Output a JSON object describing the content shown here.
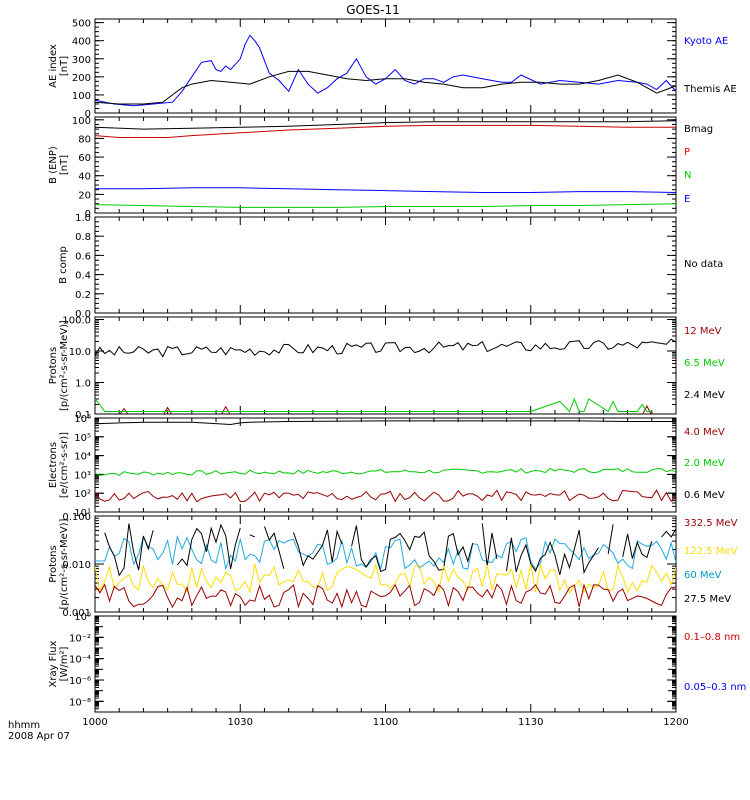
{
  "title": "GOES-11",
  "time_label": "hhmm",
  "date_label": "2008 Apr 07",
  "x_ticks": [
    {
      "t": 0,
      "label": "1000"
    },
    {
      "t": 30,
      "label": "1030"
    },
    {
      "t": 60,
      "label": "1100"
    },
    {
      "t": 90,
      "label": "1130"
    },
    {
      "t": 120,
      "label": "1200"
    }
  ],
  "chart_data": [
    {
      "type": "line",
      "ylabel": [
        "AE index",
        "[nT]"
      ],
      "scale": "linear",
      "ylim": [
        0,
        520
      ],
      "yticks": [
        0,
        100,
        200,
        300,
        400,
        500
      ],
      "yticklabels": [
        "0",
        "100",
        "200",
        "300",
        "400",
        "500"
      ],
      "legend": [
        {
          "label": "Kyoto AE",
          "color": "#0000ff"
        },
        {
          "label": "Themis AE",
          "color": "#000000"
        }
      ],
      "series": [
        {
          "name": "Kyoto AE",
          "color": "#0000ff",
          "gen": "explicit",
          "x": [
            0,
            4,
            8,
            12,
            16,
            18,
            20,
            22,
            24,
            25,
            26,
            27,
            28,
            30,
            31,
            32,
            33,
            34,
            36,
            38,
            40,
            42,
            44,
            46,
            48,
            50,
            52,
            54,
            56,
            58,
            60,
            62,
            64,
            66,
            68,
            70,
            72,
            74,
            76,
            80,
            84,
            86,
            88,
            92,
            96,
            100,
            104,
            108,
            112,
            114,
            116,
            118,
            120
          ],
          "y": [
            70,
            50,
            40,
            50,
            60,
            120,
            200,
            280,
            290,
            240,
            230,
            260,
            240,
            300,
            380,
            430,
            400,
            360,
            220,
            180,
            120,
            240,
            160,
            110,
            140,
            190,
            220,
            300,
            200,
            160,
            190,
            240,
            180,
            160,
            190,
            190,
            170,
            200,
            210,
            190,
            170,
            170,
            210,
            160,
            180,
            170,
            160,
            180,
            170,
            160,
            130,
            180,
            120
          ]
        },
        {
          "name": "Themis AE",
          "color": "#000000",
          "gen": "explicit",
          "x": [
            0,
            5,
            10,
            14,
            16,
            18,
            20,
            24,
            28,
            32,
            36,
            40,
            44,
            48,
            52,
            56,
            60,
            64,
            68,
            72,
            76,
            80,
            84,
            88,
            92,
            96,
            100,
            104,
            108,
            112,
            114,
            116,
            118,
            120
          ],
          "y": [
            60,
            50,
            50,
            60,
            100,
            140,
            160,
            180,
            170,
            160,
            200,
            230,
            230,
            210,
            190,
            180,
            190,
            190,
            170,
            160,
            140,
            140,
            160,
            170,
            170,
            160,
            160,
            180,
            210,
            170,
            140,
            110,
            130,
            150
          ]
        }
      ]
    },
    {
      "type": "line",
      "ylabel": [
        "B (ENP)",
        "[nT]"
      ],
      "scale": "linear",
      "ylim": [
        0,
        103
      ],
      "yticks": [
        0,
        20,
        40,
        60,
        80,
        100
      ],
      "yticklabels": [
        "0",
        "20",
        "40",
        "60",
        "80",
        "100"
      ],
      "legend": [
        {
          "label": "Bmag",
          "color": "#000000"
        },
        {
          "label": "P",
          "color": "#ff0000"
        },
        {
          "label": "N",
          "color": "#00cc00"
        },
        {
          "label": "E",
          "color": "#0000ff"
        }
      ],
      "series": [
        {
          "name": "Bmag",
          "color": "#000000",
          "gen": "explicit",
          "x": [
            0,
            10,
            20,
            30,
            40,
            50,
            60,
            70,
            80,
            90,
            100,
            110,
            120
          ],
          "y": [
            92,
            90,
            91,
            92,
            93,
            95,
            97,
            98,
            98,
            98,
            98,
            98,
            99
          ]
        },
        {
          "name": "P",
          "color": "#cc0000",
          "gen": "explicit",
          "x": [
            0,
            5,
            10,
            15,
            20,
            30,
            40,
            50,
            60,
            70,
            80,
            90,
            100,
            110,
            120
          ],
          "y": [
            83,
            81,
            81,
            81,
            83,
            86,
            89,
            91,
            93,
            94,
            94,
            94,
            93,
            92,
            92
          ]
        },
        {
          "name": "N",
          "color": "#00cc00",
          "gen": "explicit",
          "x": [
            0,
            10,
            20,
            30,
            40,
            50,
            60,
            70,
            80,
            90,
            100,
            110,
            120
          ],
          "y": [
            9,
            8,
            7,
            6,
            6,
            6,
            7,
            7,
            7,
            8,
            8,
            9,
            10
          ]
        },
        {
          "name": "E",
          "color": "#0000ff",
          "gen": "explicit",
          "x": [
            0,
            10,
            20,
            30,
            40,
            50,
            60,
            70,
            80,
            90,
            100,
            110,
            120
          ],
          "y": [
            26,
            26,
            27,
            27,
            26,
            25,
            24,
            23,
            22,
            22,
            23,
            23,
            22
          ]
        }
      ]
    },
    {
      "type": "line",
      "ylabel": [
        "B comp"
      ],
      "scale": "linear",
      "ylim": [
        0,
        1
      ],
      "yticks": [
        0,
        0.2,
        0.4,
        0.6,
        0.8,
        1.0
      ],
      "yticklabels": [
        "0.0",
        "0.2",
        "0.4",
        "0.6",
        "0.8",
        "1.0"
      ],
      "legend": [
        {
          "label": "No data",
          "color": "#000000"
        }
      ],
      "series": []
    },
    {
      "type": "line",
      "ylabel": [
        "Protons",
        "[p/(cm²-s-sr-MeV)]"
      ],
      "scale": "log",
      "ylim": [
        0.1,
        120
      ],
      "yticks": [
        0.1,
        1,
        10,
        100
      ],
      "yticklabels": [
        "0.1",
        "1.0",
        "10.0",
        "100.0"
      ],
      "legend": [
        {
          "label": "12 MeV",
          "color": "#990000"
        },
        {
          "label": "6.5 MeV",
          "color": "#00cc00"
        },
        {
          "label": "2.4 MeV",
          "color": "#000000"
        }
      ],
      "series": [
        {
          "name": "2.4 MeV",
          "color": "#000000",
          "gen": "noise",
          "base_start": 9,
          "base_end": 16,
          "amp": 0.09,
          "seed": 3
        },
        {
          "name": "12 MeV",
          "color": "#990000",
          "gen": "explicit",
          "x": [
            5,
            6,
            7,
            14,
            15,
            16,
            26,
            27,
            28,
            113,
            114,
            115
          ],
          "y": [
            0.09,
            0.15,
            0.09,
            0.09,
            0.16,
            0.09,
            0.09,
            0.17,
            0.09,
            0.09,
            0.18,
            0.09
          ]
        },
        {
          "name": "6.5 MeV",
          "color": "#00cc00",
          "gen": "explicit",
          "x": [
            0,
            1,
            2,
            8,
            12,
            16,
            24,
            34,
            44,
            52,
            56,
            74,
            82,
            90,
            96,
            98,
            99,
            100,
            101,
            102,
            106,
            107,
            108,
            110,
            112,
            113,
            114,
            115
          ],
          "y": [
            0.3,
            0.2,
            0.12,
            0.12,
            0.12,
            0.12,
            0.12,
            0.12,
            0.12,
            0.12,
            0.12,
            0.12,
            0.12,
            0.12,
            0.25,
            0.12,
            0.3,
            0.12,
            0.12,
            0.3,
            0.12,
            0.25,
            0.12,
            0.12,
            0.12,
            0.2,
            0.12,
            0.12
          ]
        }
      ]
    },
    {
      "type": "line",
      "ylabel": [
        "Electrons",
        "[e/(cm²-s-sr)]"
      ],
      "scale": "log",
      "ylim": [
        10,
        1000000.0
      ],
      "yticks": [
        10,
        100,
        1000,
        10000,
        100000,
        1000000
      ],
      "yticklabels": [
        "10¹",
        "10²",
        "10³",
        "10⁴",
        "10⁵",
        "10⁶"
      ],
      "legend": [
        {
          "label": "4.0 MeV",
          "color": "#990000"
        },
        {
          "label": "2.0 MeV",
          "color": "#00cc00"
        },
        {
          "label": "0.6 MeV",
          "color": "#000000"
        }
      ],
      "series": [
        {
          "name": "0.6 MeV",
          "color": "#000000",
          "gen": "explicit",
          "x": [
            0,
            10,
            20,
            28,
            30,
            32,
            40,
            60,
            80,
            100,
            110,
            120
          ],
          "y": [
            500000,
            600000,
            600000,
            450000,
            550000,
            600000,
            650000,
            700000,
            700000,
            700000,
            650000,
            650000
          ]
        },
        {
          "name": "2.0 MeV",
          "color": "#00cc00",
          "gen": "noise",
          "base_start": 1100,
          "base_end": 1700,
          "amp": 0.06,
          "seed": 7
        },
        {
          "name": "4.0 MeV",
          "color": "#990000",
          "gen": "noise",
          "base_start": 65,
          "base_end": 75,
          "amp": 0.15,
          "seed": 11
        }
      ]
    },
    {
      "type": "line",
      "ylabel": [
        "Protons",
        "[p/(cm²-s-sr-MeV)]"
      ],
      "scale": "log",
      "ylim": [
        0.001,
        0.1
      ],
      "yticks": [
        0.001,
        0.01,
        0.1
      ],
      "yticklabels": [
        "0.001",
        "0.010",
        "0.100"
      ],
      "legend": [
        {
          "label": "332.5 MeV",
          "color": "#990000"
        },
        {
          "label": "122.5 MeV",
          "color": "#ffdd00"
        },
        {
          "label": "60 MeV",
          "color": "#0099cc"
        },
        {
          "label": "27.5 MeV",
          "color": "#000000"
        }
      ],
      "series": [
        {
          "name": "60 MeV",
          "color": "#22aadd",
          "gen": "noise",
          "base_start": 0.017,
          "base_end": 0.017,
          "amp": 0.17,
          "seed": 21
        },
        {
          "name": "27.5 MeV",
          "color": "#000000",
          "gen": "noise",
          "base_start": 0.02,
          "base_end": 0.02,
          "amp": 0.28,
          "seed": 5,
          "gaps": true
        },
        {
          "name": "122.5 MeV",
          "color": "#ffdd00",
          "gen": "noise",
          "base_start": 0.005,
          "base_end": 0.005,
          "amp": 0.15,
          "seed": 17
        },
        {
          "name": "332.5 MeV",
          "color": "#990000",
          "gen": "noise",
          "base_start": 0.0022,
          "base_end": 0.0022,
          "amp": 0.12,
          "seed": 29
        }
      ]
    },
    {
      "type": "line",
      "ylabel": [
        "Xray Flux",
        "[W/m²]"
      ],
      "scale": "log",
      "ylim": [
        1e-09,
        1
      ],
      "yticks": [
        1e-08,
        1e-06,
        0.0001,
        0.01,
        1
      ],
      "yticklabels": [
        "10⁻⁸",
        "10⁻⁶",
        "10⁻⁴",
        "10⁻²",
        "10⁰"
      ],
      "legend": [
        {
          "label": "0.1–0.8 nm",
          "color": "#cc0000"
        },
        {
          "label": "0.05–0.3 nm",
          "color": "#0000ff"
        }
      ],
      "series": []
    }
  ]
}
